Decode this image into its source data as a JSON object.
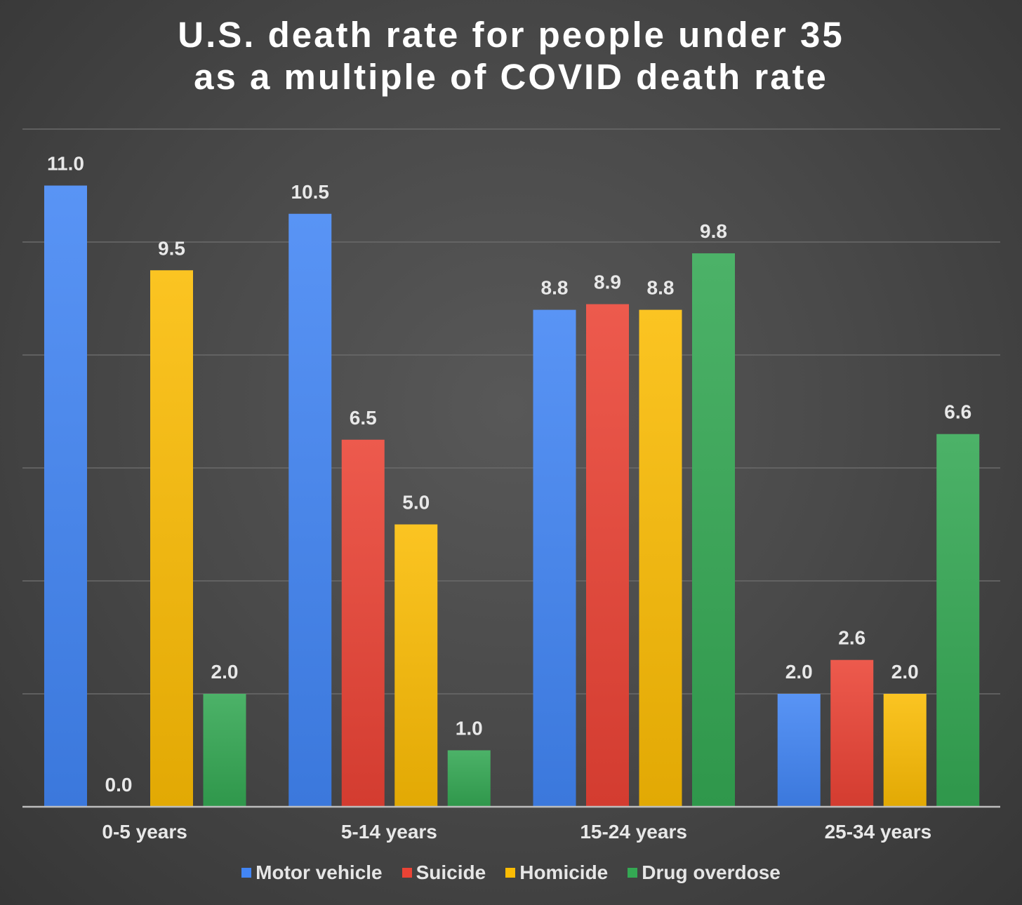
{
  "chart_data": {
    "type": "bar",
    "title_lines": [
      "U.S. death rate for people under 35",
      "as a multiple of COVID death rate"
    ],
    "xlabel": "",
    "ylabel": "",
    "categories": [
      "0-5 years",
      "5-14 years",
      "15-24 years",
      "25-34 years"
    ],
    "ylim": [
      0,
      12
    ],
    "grid": true,
    "legend_position": "bottom",
    "series": [
      {
        "name": "Motor vehicle",
        "color": "#4285f4",
        "values": [
          11.0,
          10.5,
          8.8,
          2.0
        ],
        "labels": [
          "11.0",
          "10.5",
          "8.8",
          "2.0"
        ]
      },
      {
        "name": "Suicide",
        "color": "#ea4335",
        "values": [
          0.0,
          6.5,
          8.9,
          2.6
        ],
        "labels": [
          "0.0",
          "6.5",
          "8.9",
          "2.6"
        ]
      },
      {
        "name": "Homicide",
        "color": "#fbbc04",
        "values": [
          9.5,
          5.0,
          8.8,
          2.0
        ],
        "labels": [
          "9.5",
          "5.0",
          "8.8",
          "2.0"
        ]
      },
      {
        "name": "Drug overdose",
        "color": "#34a853",
        "values": [
          2.0,
          1.0,
          9.8,
          6.6
        ],
        "labels": [
          "2.0",
          "1.0",
          "9.8",
          "6.6"
        ]
      }
    ]
  }
}
